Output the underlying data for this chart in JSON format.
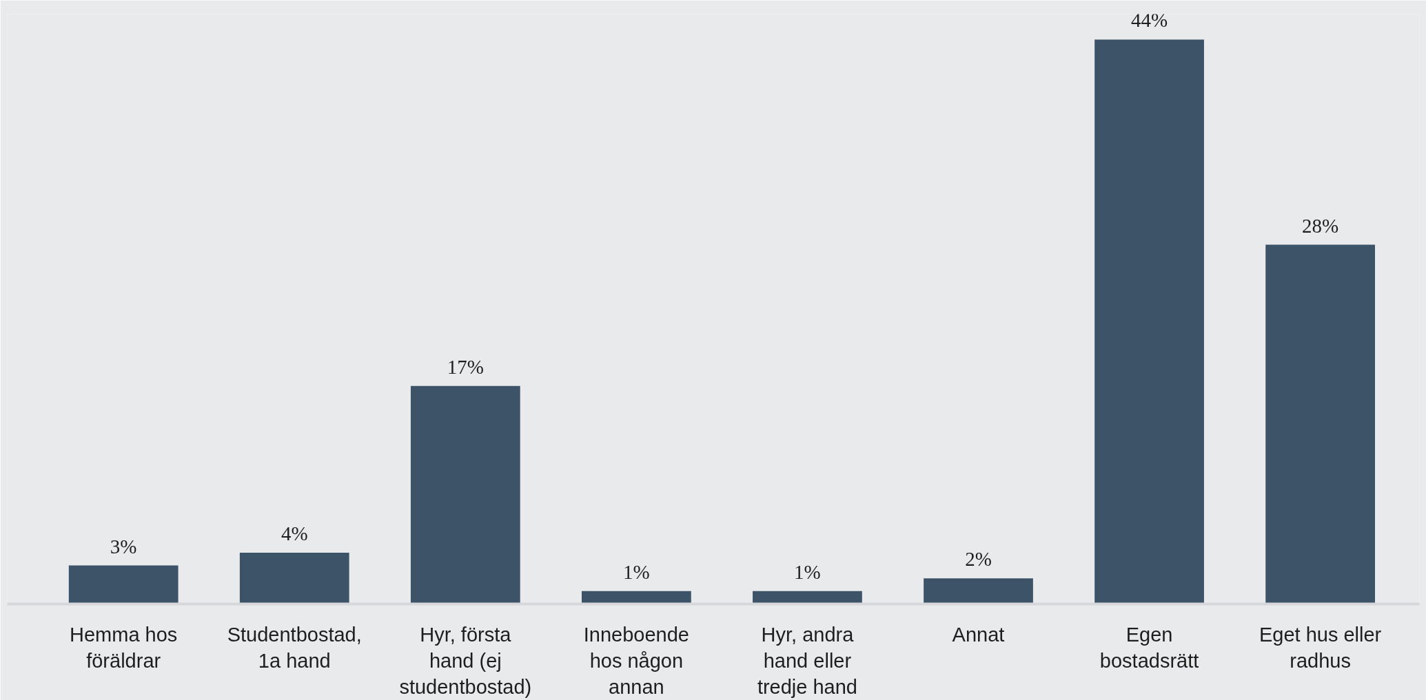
{
  "chart_data": {
    "type": "bar",
    "categories": [
      "Hemma hos\nföräldrar",
      "Studentbostad,\n1a hand",
      "Hyr, första\nhand (ej\nstudentbostad)",
      "Inneboende\nhos någon\nannan",
      "Hyr, andra\nhand eller\ntredje hand",
      "Annat",
      "Egen\nbostadsrätt",
      "Eget hus eller\nradhus"
    ],
    "values": [
      3,
      4,
      17,
      1,
      1,
      2,
      44,
      28
    ],
    "color": "#3d5468",
    "value_labels": [
      "3%",
      "4%",
      "17%",
      "1%",
      "1%",
      "2%",
      "44%",
      "28%"
    ],
    "grid": false,
    "tick_labels": "x"
  }
}
